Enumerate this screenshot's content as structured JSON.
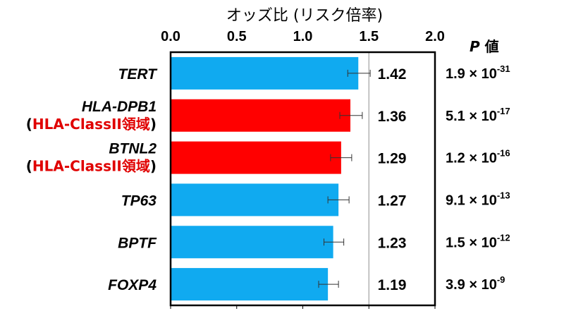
{
  "chart_data": {
    "type": "bar",
    "orientation": "horizontal",
    "title": "オッズ比 (リスク倍率)",
    "p_header": "値",
    "p_header_italic": "P",
    "xlim": [
      0,
      2
    ],
    "xticks": [
      "0.0",
      "0.5",
      "1.0",
      "1.5",
      "2.0"
    ],
    "reference_line": 1.5,
    "categories": [
      {
        "gene": "TERT",
        "region": "",
        "value": 1.42,
        "label": "1.42",
        "ci": [
          1.34,
          1.51
        ],
        "p_mantissa": "1.9",
        "p_exp": "-31",
        "color": "#10aaf0"
      },
      {
        "gene": "HLA-DPB1",
        "region": "HLA-ClassII領域",
        "value": 1.36,
        "label": "1.36",
        "ci": [
          1.28,
          1.45
        ],
        "p_mantissa": "5.1",
        "p_exp": "-17",
        "color": "#ff0000"
      },
      {
        "gene": "BTNL2",
        "region": "HLA-ClassII領域",
        "value": 1.29,
        "label": "1.29",
        "ci": [
          1.21,
          1.37
        ],
        "p_mantissa": "1.2",
        "p_exp": "-16",
        "color": "#ff0000"
      },
      {
        "gene": "TP63",
        "region": "",
        "value": 1.27,
        "label": "1.27",
        "ci": [
          1.19,
          1.35
        ],
        "p_mantissa": "9.1",
        "p_exp": "-13",
        "color": "#10aaf0"
      },
      {
        "gene": "BPTF",
        "region": "",
        "value": 1.23,
        "label": "1.23",
        "ci": [
          1.16,
          1.31
        ],
        "p_mantissa": "1.5",
        "p_exp": "-12",
        "color": "#10aaf0"
      },
      {
        "gene": "FOXP4",
        "region": "",
        "value": 1.19,
        "label": "1.19",
        "ci": [
          1.12,
          1.27
        ],
        "p_mantissa": "3.9",
        "p_exp": "-9",
        "color": "#10aaf0"
      }
    ],
    "times_sign": "×",
    "grid": false
  }
}
